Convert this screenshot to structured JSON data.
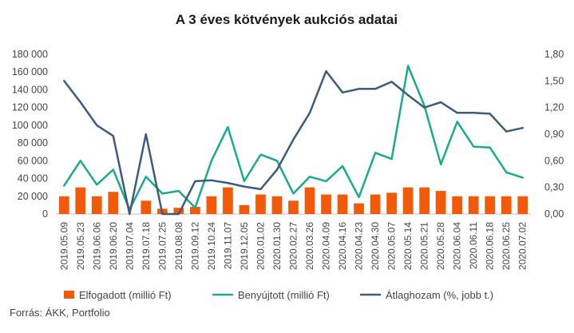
{
  "chart_data": {
    "type": "bar+line",
    "title": "A 3 éves kötvények aukciós adatai",
    "source": "Forrás: ÁKK, Portfolio",
    "categories": [
      "2019.05.09",
      "2019.05.23",
      "2019.06.06",
      "2019.06.20",
      "2019.07.04",
      "2019.07.18",
      "2019.07.25",
      "2019.08.08",
      "2019.09.12",
      "2019.10.24",
      "2019.11.07",
      "2019.12.05",
      "2020.01.02",
      "2020.01.30",
      "2020.02.27",
      "2020.03.26",
      "2020.04.09",
      "2020.04.16",
      "2020.04.23",
      "2020.04.30",
      "2020.05.07",
      "2020.05.14",
      "2020.05.21",
      "2020.05.28",
      "2020.06.04",
      "2020.06.11",
      "2020.06.18",
      "2020.06.25",
      "2020.07.02"
    ],
    "y_left": {
      "min": 0,
      "max": 180000,
      "ticks": [
        "0",
        "20 000",
        "40 000",
        "60 000",
        "80 000",
        "100 000",
        "120 000",
        "140 000",
        "160 000",
        "180 000"
      ]
    },
    "y_right": {
      "min": 0,
      "max": 1.8,
      "ticks": [
        "0,00",
        "0,30",
        "0,60",
        "0,90",
        "1,20",
        "1,50",
        "1,80"
      ]
    },
    "series": [
      {
        "name": "Elfogadott (millió Ft)",
        "type": "bar",
        "axis": "left",
        "color": "#f25a0a",
        "values": [
          20000,
          30000,
          20000,
          25000,
          0,
          15000,
          6000,
          7000,
          8000,
          20000,
          30000,
          10000,
          22000,
          20000,
          15000,
          30000,
          22000,
          22000,
          12000,
          22000,
          24000,
          30000,
          30000,
          26000,
          20000,
          20000,
          20000,
          20000,
          20000
        ]
      },
      {
        "name": "Benyújtott (millió Ft)",
        "type": "line",
        "axis": "left",
        "color": "#1aab8a",
        "values": [
          32000,
          60000,
          33000,
          50000,
          5000,
          42000,
          23000,
          26000,
          7000,
          60000,
          98000,
          37000,
          67000,
          60000,
          23000,
          42000,
          37000,
          54000,
          19000,
          69000,
          62000,
          167000,
          122000,
          56000,
          104000,
          76000,
          75000,
          47000,
          41000
        ]
      },
      {
        "name": "Átlaghozam (%, jobb t.)",
        "type": "line",
        "axis": "right",
        "color": "#3d5a80",
        "values": [
          1.5,
          1.26,
          1.0,
          0.88,
          0.0,
          0.9,
          0.0,
          0.0,
          0.37,
          0.38,
          0.35,
          0.31,
          0.28,
          0.5,
          0.84,
          1.14,
          1.61,
          1.37,
          1.41,
          1.41,
          1.49,
          1.34,
          1.2,
          1.26,
          1.14,
          1.14,
          1.13,
          0.93,
          0.97
        ]
      }
    ],
    "legend": "bottom",
    "grid": false
  }
}
